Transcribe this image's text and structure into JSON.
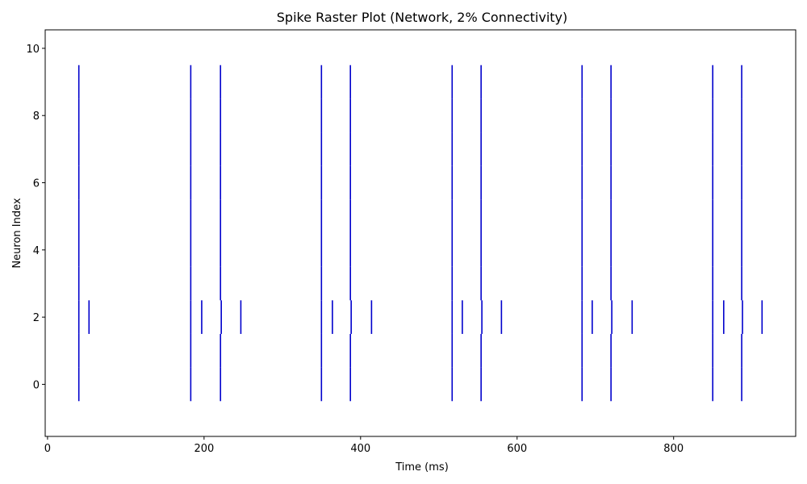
{
  "chart_data": {
    "type": "raster",
    "title": "Spike Raster Plot (Network, 2% Connectivity)",
    "xlabel": "Time (ms)",
    "ylabel": "Neuron Index",
    "xlim": [
      -3,
      956
    ],
    "ylim": [
      -1.55,
      10.55
    ],
    "xticks": [
      0,
      200,
      400,
      600,
      800
    ],
    "yticks": [
      0,
      2,
      4,
      6,
      8,
      10
    ],
    "grid": false,
    "spike_color": "#0000cc",
    "series": [
      {
        "neuron": 0,
        "spikes": [
          40,
          183,
          221,
          350,
          387,
          517,
          554,
          683,
          720,
          850,
          887
        ]
      },
      {
        "neuron": 1,
        "spikes": [
          40,
          183,
          221,
          350,
          387,
          517,
          554,
          683,
          720,
          850,
          887
        ]
      },
      {
        "neuron": 2,
        "spikes": [
          40,
          53,
          183,
          197,
          222,
          247,
          350,
          364,
          388,
          414,
          517,
          530,
          555,
          580,
          683,
          696,
          721,
          747,
          850,
          864,
          888,
          913
        ]
      },
      {
        "neuron": 3,
        "spikes": [
          40,
          183,
          221,
          350,
          387,
          517,
          554,
          683,
          720,
          850,
          887
        ]
      },
      {
        "neuron": 4,
        "spikes": [
          40,
          183,
          221,
          350,
          387,
          517,
          554,
          683,
          720,
          850,
          887
        ]
      },
      {
        "neuron": 5,
        "spikes": [
          40,
          183,
          221,
          350,
          387,
          517,
          554,
          683,
          720,
          850,
          887
        ]
      },
      {
        "neuron": 6,
        "spikes": [
          40,
          183,
          221,
          350,
          387,
          517,
          554,
          683,
          720,
          850,
          887
        ]
      },
      {
        "neuron": 7,
        "spikes": [
          40,
          183,
          221,
          350,
          387,
          517,
          554,
          683,
          720,
          850,
          887
        ]
      },
      {
        "neuron": 8,
        "spikes": [
          40,
          183,
          221,
          350,
          387,
          517,
          554,
          683,
          720,
          850,
          887
        ]
      },
      {
        "neuron": 9,
        "spikes": [
          40,
          183,
          221,
          350,
          387,
          517,
          554,
          683,
          720,
          850,
          887
        ]
      }
    ]
  }
}
